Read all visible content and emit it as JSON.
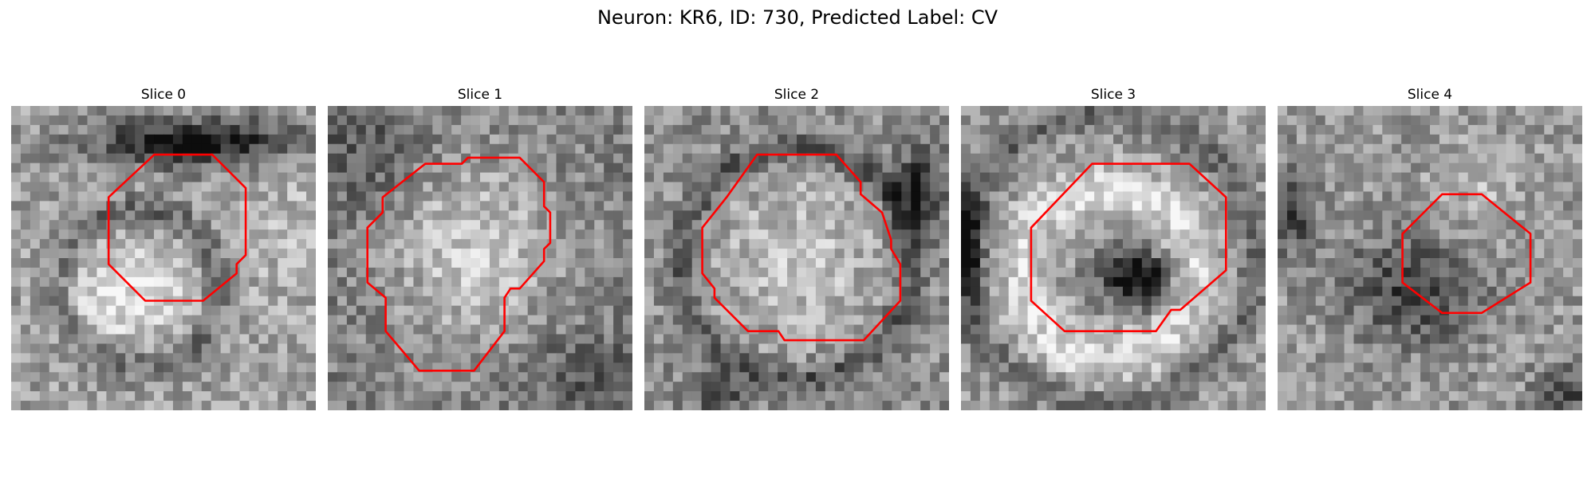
{
  "figure": {
    "title": "Neuron: KR6, ID: 730, Predicted Label: CV",
    "contour_color": "#ff0000"
  },
  "slices": [
    {
      "label": "Slice 0"
    },
    {
      "label": "Slice 1"
    },
    {
      "label": "Slice 2"
    },
    {
      "label": "Slice 3"
    },
    {
      "label": "Slice 4"
    }
  ]
}
